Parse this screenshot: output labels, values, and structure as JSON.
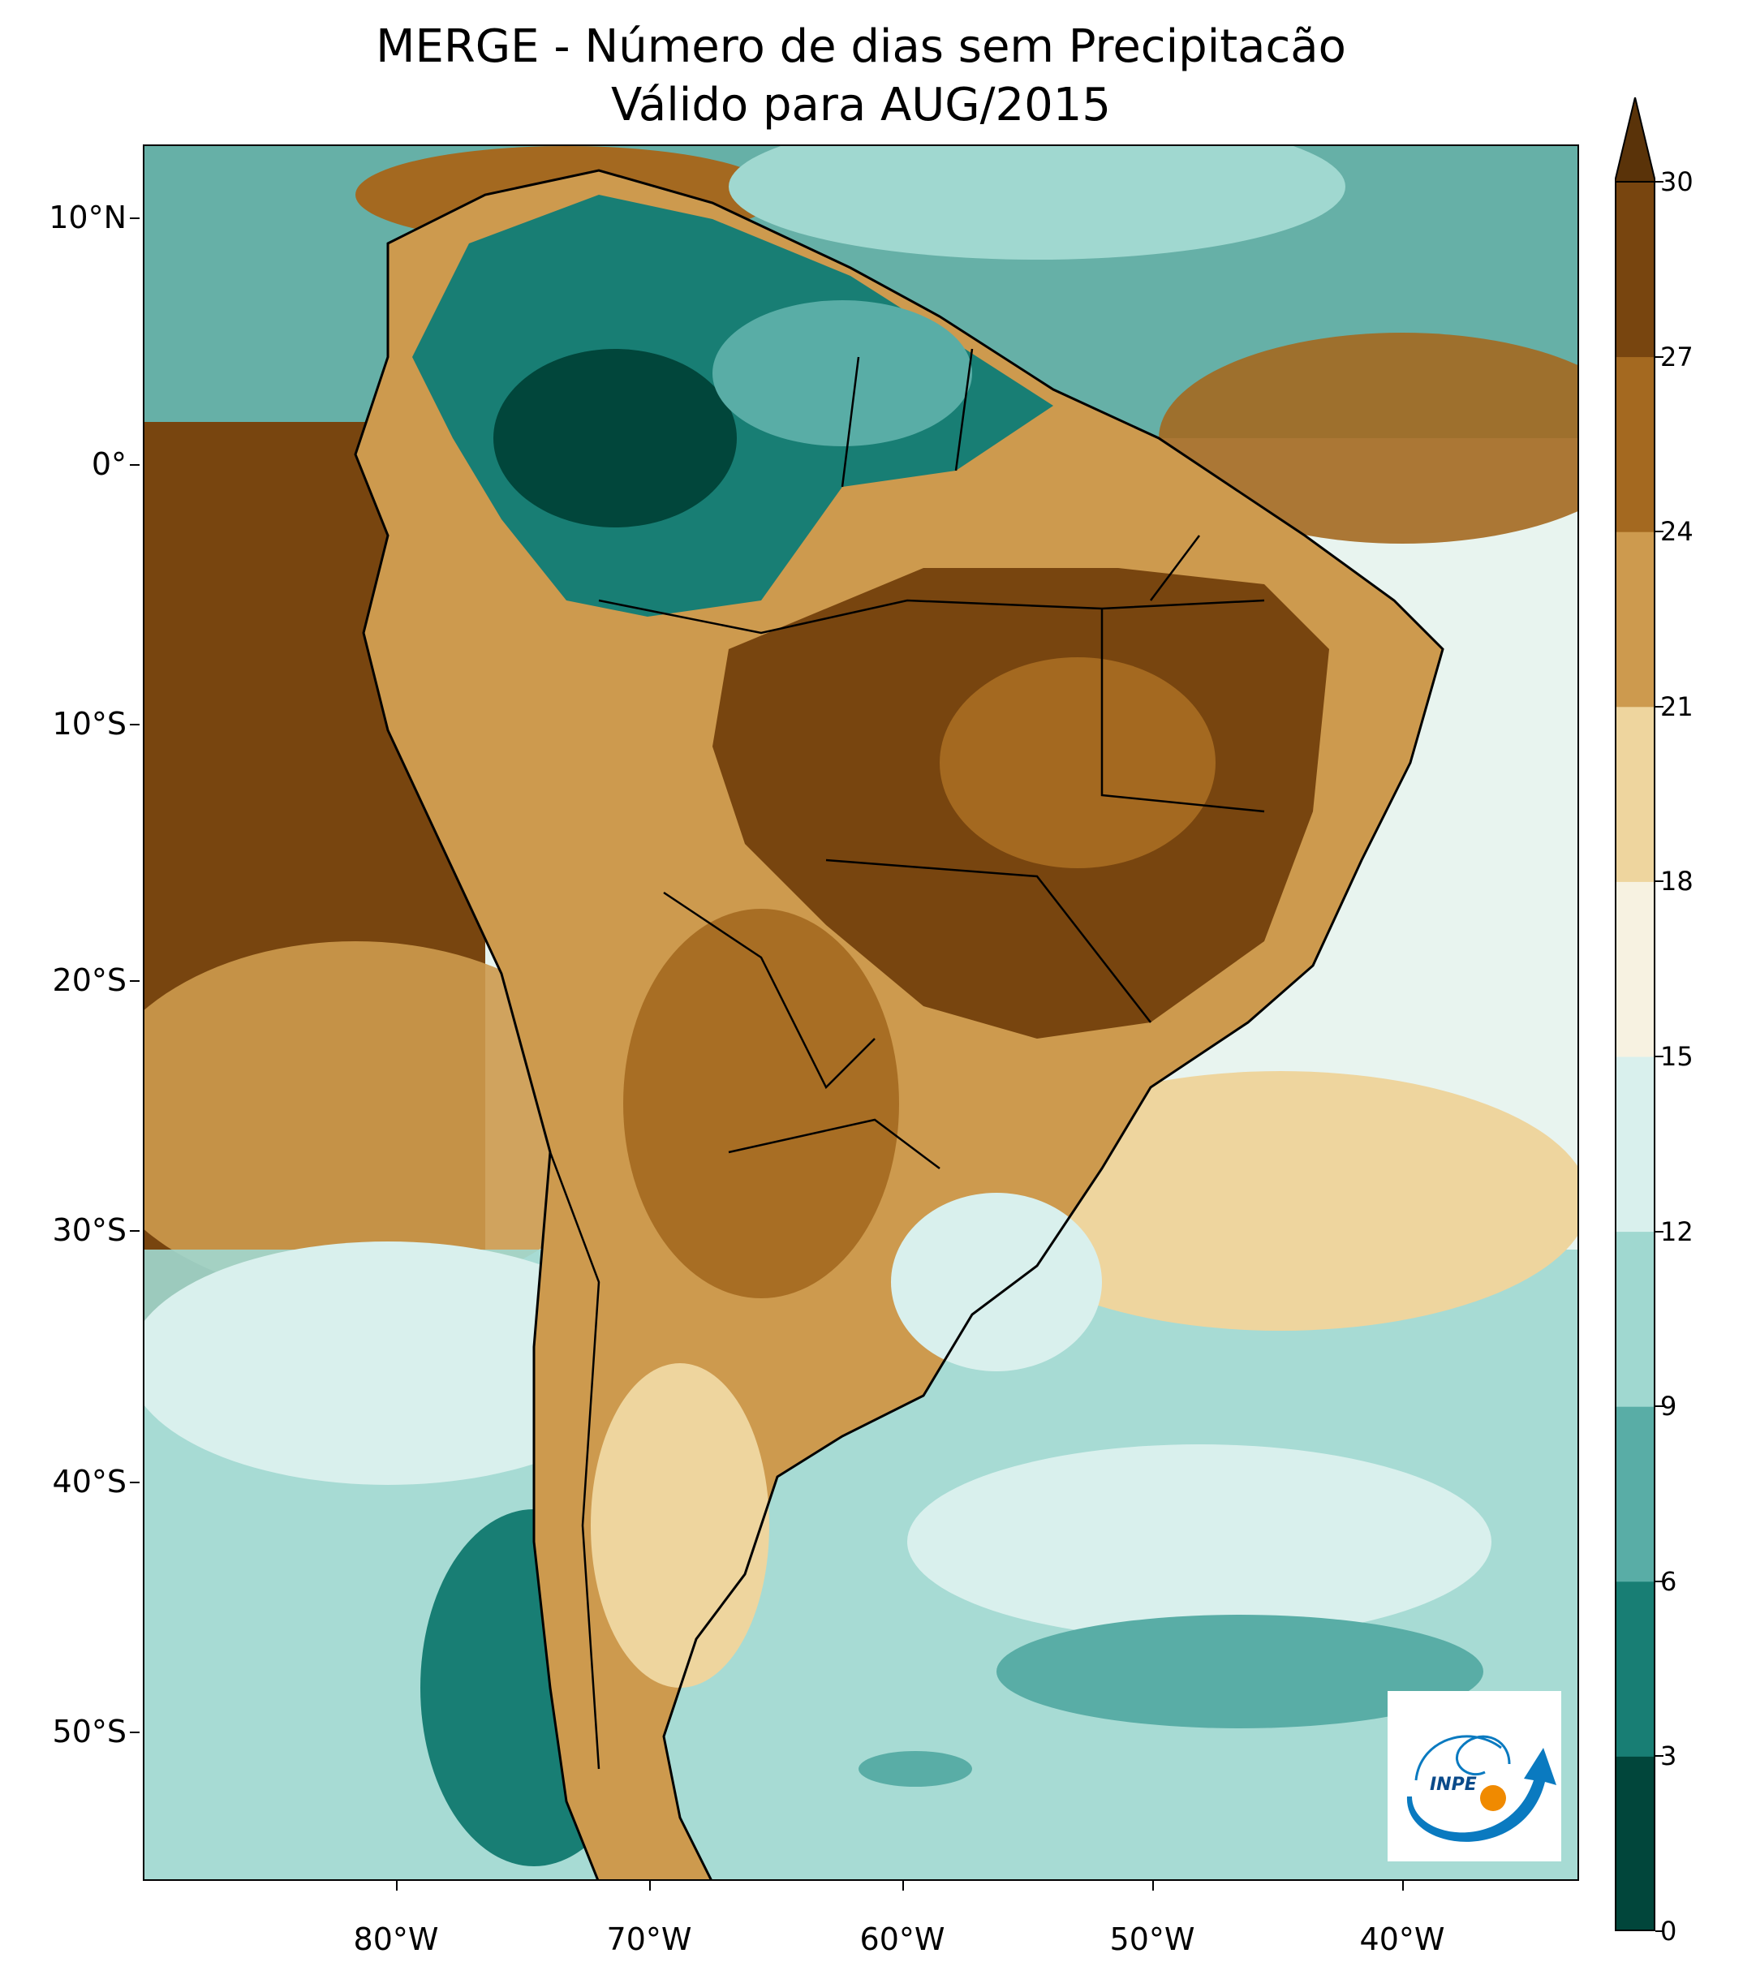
{
  "title": {
    "line1": "MERGE - Número de dias sem Precipitacão",
    "line2": "Válido para AUG/2015"
  },
  "axes": {
    "lat_labels": [
      "10°N",
      "0°",
      "10°S",
      "20°S",
      "30°S",
      "40°S",
      "50°S"
    ],
    "lon_labels": [
      "80°W",
      "70°W",
      "60°W",
      "50°W",
      "40°W"
    ]
  },
  "colorbar": {
    "ticks": [
      "0",
      "3",
      "6",
      "9",
      "12",
      "15",
      "18",
      "21",
      "24",
      "27",
      "30"
    ],
    "colors": [
      "#01463b",
      "#187e74",
      "#59ada6",
      "#a0d8d0",
      "#d9f0ed",
      "#f7f2e1",
      "#eed59e",
      "#cd9a4e",
      "#a46920",
      "#78450f"
    ],
    "extend_color": "#5a3309",
    "extend": "max"
  },
  "logo": {
    "text": "INPE",
    "primary_color": "#0a7ac0",
    "accent_color": "#f08a00"
  },
  "map": {
    "background_color": "#f5eed9",
    "border_color": "#000000"
  }
}
